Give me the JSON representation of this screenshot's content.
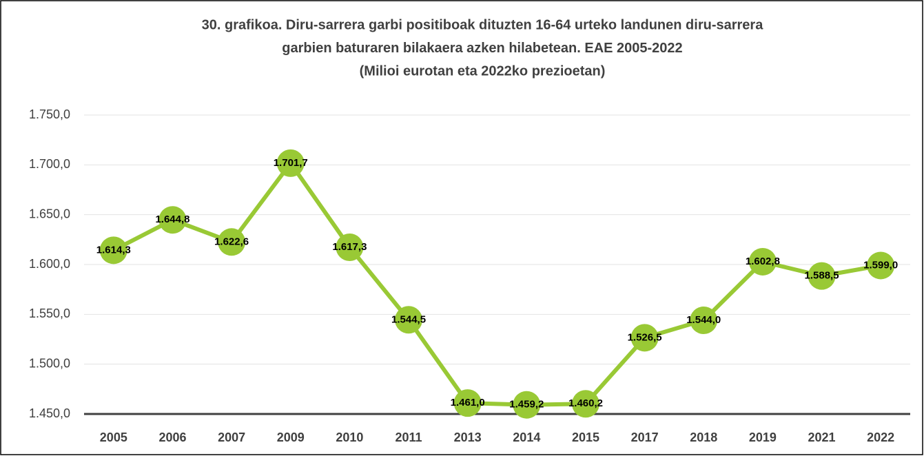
{
  "chart_data": {
    "type": "line",
    "title": [
      "30. grafikoa. Diru-sarrera garbi positiboak dituzten 16-64 urteko landunen diru-sarrera",
      "garbien baturaren bilakaera azken hilabetean. EAE 2005-2022",
      "(Milioi eurotan eta 2022ko prezioetan)"
    ],
    "categories": [
      "2005",
      "2006",
      "2007",
      "2009",
      "2010",
      "2011",
      "2013",
      "2014",
      "2015",
      "2017",
      "2018",
      "2019",
      "2021",
      "2022"
    ],
    "values": [
      1614.3,
      1644.8,
      1622.6,
      1701.7,
      1617.3,
      1544.5,
      1461.0,
      1459.2,
      1460.2,
      1526.5,
      1544.0,
      1602.8,
      1588.5,
      1599.0
    ],
    "value_labels": [
      "1.614,3",
      "1.644,8",
      "1.622,6",
      "1.701,7",
      "1.617,3",
      "1.544,5",
      "1.461,0",
      "1.459,2",
      "1.460,2",
      "1.526,5",
      "1.544,0",
      "1.602,8",
      "1.588,5",
      "1.599,0"
    ],
    "color": "#99c935",
    "ylim": [
      1450,
      1750
    ],
    "yticks": [
      {
        "value": 1450,
        "label": "1.450,0"
      },
      {
        "value": 1500,
        "label": "1.500,0"
      },
      {
        "value": 1550,
        "label": "1.550,0"
      },
      {
        "value": 1600,
        "label": "1.600,0"
      },
      {
        "value": 1650,
        "label": "1.650,0"
      },
      {
        "value": 1700,
        "label": "1.700,0"
      },
      {
        "value": 1750,
        "label": "1.750,0"
      }
    ],
    "grid": true
  }
}
